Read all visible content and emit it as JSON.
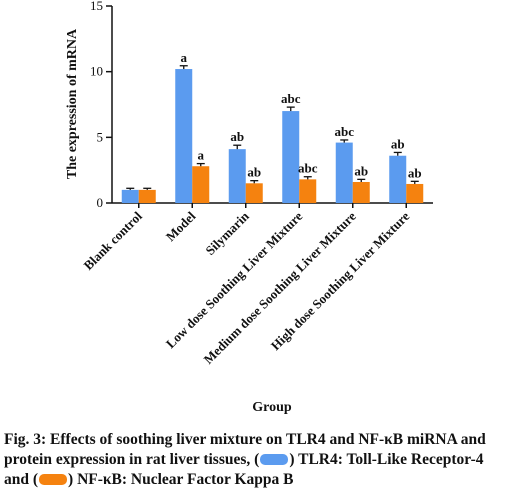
{
  "chart_data": {
    "type": "bar",
    "ylabel": "The expression of mRNA",
    "xlabel": "Group",
    "ylim": [
      0,
      15
    ],
    "yticks": [
      0,
      5,
      10,
      15
    ],
    "categories": [
      "Blank control",
      "Model",
      "Silymarin",
      "Low dose Soothing Liver Mixture",
      "Medium dose Soothing Liver Mixture",
      "High dose Soothing Liver Mixture"
    ],
    "series": [
      {
        "name": "TLR4",
        "color": "#5b9bef",
        "values": [
          1.0,
          10.2,
          4.1,
          7.0,
          4.6,
          3.6
        ],
        "errors": [
          0.12,
          0.25,
          0.3,
          0.3,
          0.2,
          0.25
        ],
        "labels": [
          "",
          "a",
          "ab",
          "abc",
          "abc",
          "ab"
        ]
      },
      {
        "name": "NF-κB",
        "color": "#f5820f",
        "values": [
          1.0,
          2.8,
          1.5,
          1.8,
          1.6,
          1.45
        ],
        "errors": [
          0.12,
          0.2,
          0.2,
          0.2,
          0.2,
          0.2
        ],
        "labels": [
          "",
          "a",
          "ab",
          "abc",
          "ab",
          "ab"
        ]
      }
    ],
    "grid": false,
    "legend": "in caption"
  },
  "caption": {
    "prefix": "Fig. 3: Effects of soothing liver mixture on TLR4 and NF-κB miRNA and protein expression in rat liver tissues,",
    "item1_open": "(",
    "item1_close": ") TLR4: Toll-Like Receptor-4 and",
    "item2_open": "(",
    "item2_close": ") NF-κB: Nuclear Factor Kappa B",
    "tlr4_color": "#5b9bef",
    "nfkb_color": "#f5820f"
  }
}
